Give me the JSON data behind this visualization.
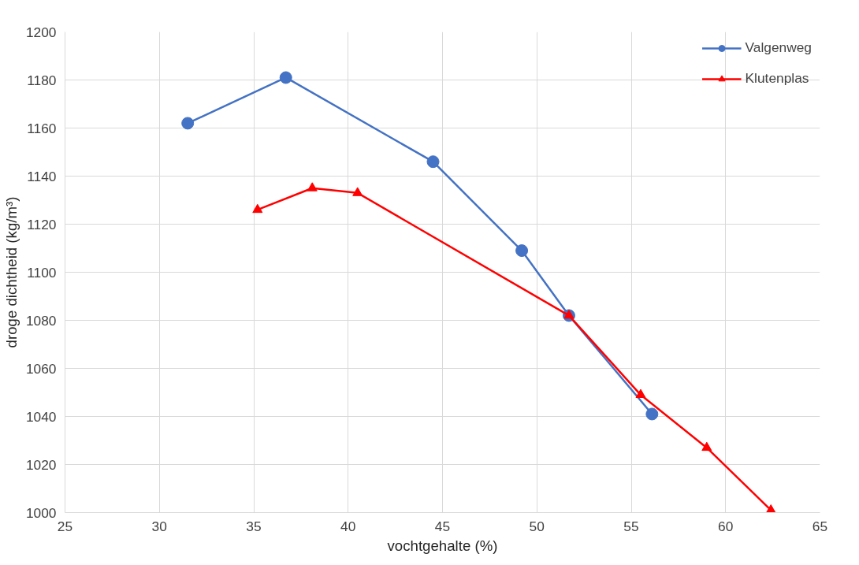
{
  "chart_data": {
    "type": "line",
    "xlabel": "vochtgehalte (%)",
    "ylabel": "droge dichtheid (kg/m³)",
    "xlim": [
      25,
      65
    ],
    "xticks": [
      25,
      30,
      35,
      40,
      45,
      50,
      55,
      60,
      65
    ],
    "ylim": [
      1000,
      1200
    ],
    "yticks": [
      1000,
      1020,
      1040,
      1060,
      1080,
      1100,
      1120,
      1140,
      1160,
      1180,
      1200
    ],
    "grid": true,
    "legend": "top right",
    "line_style": "solid",
    "series": [
      {
        "name": "Valgenweg",
        "color": "#4472c4",
        "marker": "circle",
        "x": [
          31.5,
          36.7,
          44.5,
          49.2,
          51.7,
          56.1
        ],
        "values": [
          1162,
          1181,
          1146,
          1109,
          1082,
          1041
        ]
      },
      {
        "name": "Klutenplas",
        "color": "#ff0000",
        "marker": "triangle",
        "x": [
          35.2,
          38.1,
          40.5,
          51.7,
          55.5,
          59.0,
          62.4
        ],
        "values": [
          1126,
          1135,
          1133,
          1082,
          1049,
          1027,
          1001
        ]
      }
    ]
  }
}
